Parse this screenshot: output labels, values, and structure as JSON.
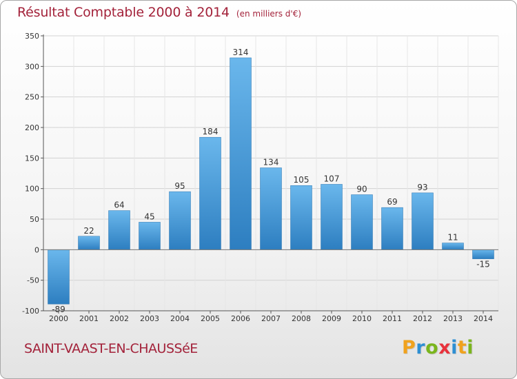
{
  "header": {
    "title": "Résultat Comptable 2000 à 2014",
    "subtitle": "(en milliers d'€)"
  },
  "footer": {
    "commune": "SAINT-VAAST-EN-CHAUSSéE",
    "brand": "Proxiti",
    "brand_colors": [
      "#f0a21d",
      "#2d8fd3",
      "#7ab51d",
      "#e8323c",
      "#2d8fd3",
      "#f0a21d",
      "#7ab51d"
    ]
  },
  "colors": {
    "title": "#a3223a",
    "bar_light": "#6ab7ec",
    "bar_dark": "#2d7ec0",
    "grid": "#d2d2d2",
    "axis": "#555555"
  },
  "chart_data": {
    "type": "bar",
    "title": "Résultat Comptable 2000 à 2014",
    "subtitle": "(en milliers d'€)",
    "xlabel": "",
    "ylabel": "",
    "categories": [
      "2000",
      "2001",
      "2002",
      "2003",
      "2004",
      "2005",
      "2006",
      "2007",
      "2008",
      "2009",
      "2010",
      "2011",
      "2012",
      "2013",
      "2014"
    ],
    "values": [
      -89,
      22,
      64,
      45,
      95,
      184,
      314,
      134,
      105,
      107,
      90,
      69,
      93,
      11,
      -15
    ],
    "data_labels": [
      "-89",
      "22",
      "64",
      "45",
      "95",
      "184",
      "314",
      "134",
      "105",
      "107",
      "90",
      "69",
      "93",
      "11",
      "-15"
    ],
    "ylim": [
      -100,
      350
    ],
    "yticks": [
      -100,
      -50,
      0,
      50,
      100,
      150,
      200,
      250,
      300,
      350
    ],
    "ytick_labels": [
      "-100",
      "-50",
      "0",
      "50",
      "100",
      "150",
      "200",
      "250",
      "300",
      "350"
    ],
    "grid": true
  }
}
